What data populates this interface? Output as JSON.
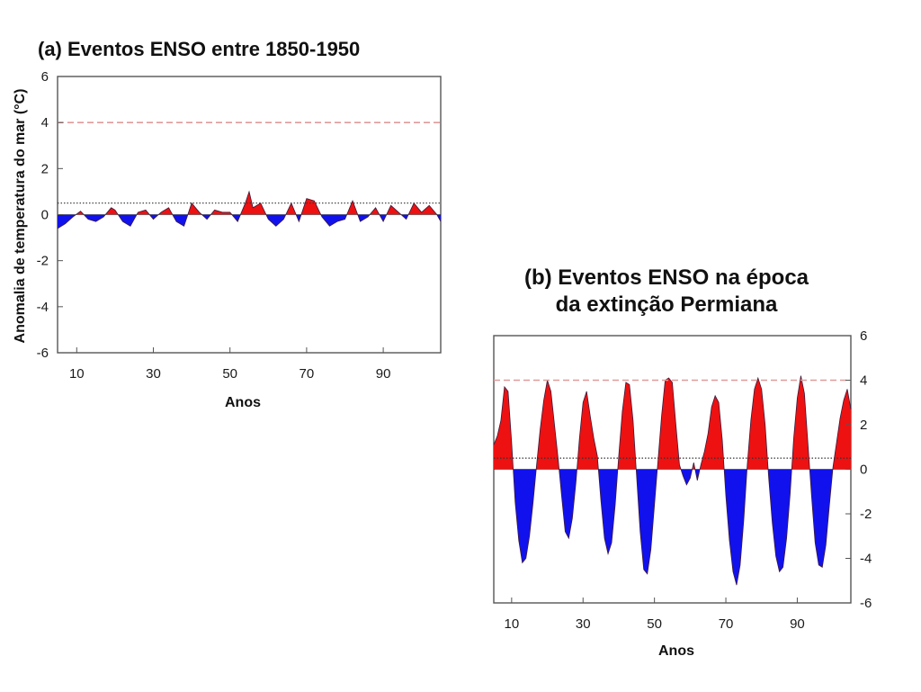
{
  "chart_data": [
    {
      "type": "area",
      "title": "(a) Eventos ENSO entre 1850-1950",
      "xlabel": "Anos",
      "ylabel": "Anomalia de temperatura do mar (°C)",
      "xlim": [
        5,
        105
      ],
      "ylim": [
        -6,
        6
      ],
      "xticks": [
        10,
        30,
        50,
        70,
        90
      ],
      "yticks": [
        6,
        4,
        2,
        0,
        -2,
        -4,
        -6
      ],
      "y_axis_side": "left",
      "reference_lines": [
        {
          "y": 4,
          "style": "dashed",
          "color": "#e09a9a"
        },
        {
          "y": 0.5,
          "style": "dotted",
          "color": "#333333"
        }
      ],
      "fill_above_zero_color": "#ee1111",
      "fill_below_zero_color": "#1111ee",
      "series": [
        {
          "x": [
            5,
            7,
            9,
            11,
            13,
            15,
            17,
            19,
            20,
            22,
            24,
            26,
            28,
            30,
            32,
            34,
            36,
            38,
            40,
            42,
            44,
            46,
            48,
            50,
            52,
            54,
            55,
            56,
            58,
            60,
            62,
            64,
            66,
            68,
            70,
            72,
            74,
            76,
            78,
            80,
            82,
            84,
            86,
            88,
            90,
            92,
            94,
            96,
            98,
            100,
            102,
            104,
            105
          ],
          "values": [
            -0.6,
            -0.4,
            -0.1,
            0.15,
            -0.2,
            -0.3,
            -0.1,
            0.3,
            0.2,
            -0.3,
            -0.5,
            0.1,
            0.2,
            -0.2,
            0.1,
            0.3,
            -0.3,
            -0.5,
            0.5,
            0.1,
            -0.2,
            0.2,
            0.1,
            0.1,
            -0.3,
            0.5,
            1.0,
            0.3,
            0.5,
            -0.2,
            -0.5,
            -0.2,
            0.5,
            -0.3,
            0.7,
            0.6,
            -0.1,
            -0.5,
            -0.3,
            -0.2,
            0.6,
            -0.3,
            -0.1,
            0.3,
            -0.3,
            0.4,
            0.1,
            -0.2,
            0.5,
            0.1,
            0.4,
            0.0,
            -0.3
          ]
        }
      ]
    },
    {
      "type": "area",
      "title": "(b) Eventos ENSO na época da extinção Permiana",
      "title_lines": [
        "(b) Eventos ENSO na época",
        "da extinção Permiana"
      ],
      "xlabel": "Anos",
      "ylabel": "",
      "xlim": [
        5,
        105
      ],
      "ylim": [
        -6,
        6
      ],
      "xticks": [
        10,
        30,
        50,
        70,
        90
      ],
      "yticks": [
        6,
        4,
        2,
        0,
        -2,
        -4,
        -6
      ],
      "y_axis_side": "right",
      "reference_lines": [
        {
          "y": 4,
          "style": "dashed",
          "color": "#e09a9a"
        },
        {
          "y": 0.5,
          "style": "dotted",
          "color": "#333333"
        }
      ],
      "fill_above_zero_color": "#ee1111",
      "fill_below_zero_color": "#1111ee",
      "series": [
        {
          "x": [
            5,
            6,
            7,
            8,
            9,
            10,
            11,
            12,
            13,
            14,
            15,
            16,
            17,
            18,
            19,
            20,
            21,
            22,
            23,
            24,
            25,
            26,
            27,
            28,
            29,
            30,
            31,
            32,
            33,
            34,
            35,
            36,
            37,
            38,
            39,
            40,
            41,
            42,
            43,
            44,
            45,
            46,
            47,
            48,
            49,
            50,
            51,
            52,
            53,
            54,
            55,
            56,
            57,
            58,
            59,
            60,
            61,
            62,
            63,
            64,
            65,
            66,
            67,
            68,
            69,
            70,
            71,
            72,
            73,
            74,
            75,
            76,
            77,
            78,
            79,
            80,
            81,
            82,
            83,
            84,
            85,
            86,
            87,
            88,
            89,
            90,
            91,
            92,
            93,
            94,
            95,
            96,
            97,
            98,
            99,
            100,
            101,
            102,
            103,
            104,
            105
          ],
          "values": [
            1.1,
            1.5,
            2.2,
            3.7,
            3.5,
            1.2,
            -1.5,
            -3.2,
            -4.2,
            -4.0,
            -3.0,
            -1.5,
            0.2,
            1.8,
            3.1,
            4.0,
            3.5,
            2.0,
            0.5,
            -1.2,
            -2.8,
            -3.1,
            -2.2,
            -0.6,
            1.4,
            3.0,
            3.5,
            2.4,
            1.4,
            0.6,
            -1.4,
            -3.1,
            -3.8,
            -3.3,
            -1.6,
            0.6,
            2.6,
            3.9,
            3.8,
            2.2,
            -0.3,
            -2.8,
            -4.5,
            -4.7,
            -3.6,
            -1.6,
            0.4,
            2.4,
            4.0,
            4.1,
            3.9,
            2.0,
            0.2,
            -0.3,
            -0.7,
            -0.4,
            0.3,
            -0.5,
            0.2,
            0.8,
            1.6,
            2.8,
            3.3,
            3.0,
            1.3,
            -1.2,
            -3.2,
            -4.6,
            -5.2,
            -4.3,
            -2.3,
            0.2,
            2.2,
            3.6,
            4.1,
            3.6,
            2.0,
            -0.4,
            -2.4,
            -3.9,
            -4.6,
            -4.4,
            -3.1,
            -1.1,
            1.4,
            3.2,
            4.2,
            3.4,
            1.1,
            -1.2,
            -3.3,
            -4.3,
            -4.4,
            -3.4,
            -1.6,
            0.1,
            1.2,
            2.3,
            3.1,
            3.6,
            2.7
          ]
        }
      ]
    }
  ]
}
